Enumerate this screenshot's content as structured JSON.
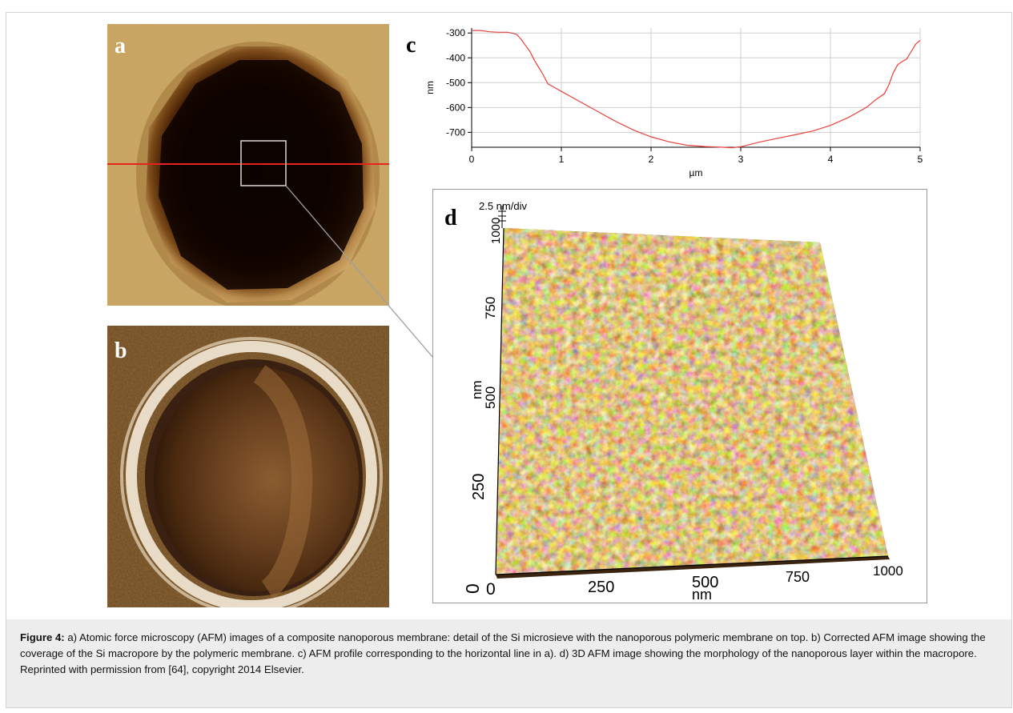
{
  "figure": {
    "panels": {
      "a": {
        "letter": "a"
      },
      "b": {
        "letter": "b"
      },
      "c": {
        "letter": "c"
      },
      "d": {
        "letter": "d"
      }
    }
  },
  "chart_data": {
    "type": "line",
    "xlabel": "µm",
    "ylabel": "nm",
    "xlim": [
      0,
      5
    ],
    "ylim": [
      -760,
      -280
    ],
    "x_ticks": [
      "0",
      "1",
      "2",
      "3",
      "4",
      "5"
    ],
    "y_ticks": [
      "-300",
      "-400",
      "-500",
      "-600",
      "-700"
    ],
    "grid": true,
    "series": [
      {
        "color": "#e8413c",
        "x": [
          0,
          0.1,
          0.2,
          0.3,
          0.4,
          0.5,
          0.55,
          0.6,
          0.65,
          0.7,
          0.75,
          0.8,
          0.85,
          0.9,
          1.0,
          1.1,
          1.2,
          1.4,
          1.6,
          1.8,
          2.0,
          2.2,
          2.4,
          2.6,
          2.8,
          2.9,
          3.0,
          3.2,
          3.4,
          3.6,
          3.8,
          4.0,
          4.2,
          4.4,
          4.5,
          4.6,
          4.65,
          4.7,
          4.75,
          4.8,
          4.85,
          4.9,
          4.95,
          5.0
        ],
        "y": [
          -290,
          -290,
          -295,
          -297,
          -297,
          -305,
          -325,
          -350,
          -375,
          -410,
          -440,
          -470,
          -505,
          -515,
          -535,
          -555,
          -575,
          -615,
          -655,
          -690,
          -718,
          -738,
          -752,
          -757,
          -760,
          -762,
          -758,
          -740,
          -725,
          -710,
          -695,
          -672,
          -640,
          -600,
          -570,
          -545,
          -510,
          -460,
          -428,
          -415,
          -405,
          -375,
          -345,
          -330
        ]
      }
    ],
    "annotations": []
  },
  "panel_d": {
    "z_scale": "2.5 nm/div",
    "z_axis_labels": [
      "1000",
      "750",
      "500",
      "250",
      "0"
    ],
    "z_axis_title": "nm",
    "x_axis_labels": [
      "0",
      "250",
      "500",
      "750",
      "1000"
    ],
    "x_axis_title": "nm"
  },
  "caption": {
    "label": "Figure 4:",
    "text": " a) Atomic force microscopy (AFM) images of a composite nanoporous membrane: detail of the Si microsieve with the nanoporous polymeric membrane on top. b) Corrected AFM image showing the coverage of the Si macropore by the polymeric membrane. c) AFM profile corresponding to the horizontal line in a). d) 3D AFM image showing the morphology of the nanoporous layer within the macropore. Reprinted with permission from [64], copyright 2014 Elsevier."
  },
  "colors": {
    "profile_line": "#e8413c",
    "scan_line": "#e8231b",
    "caption_bg": "#ededed"
  }
}
